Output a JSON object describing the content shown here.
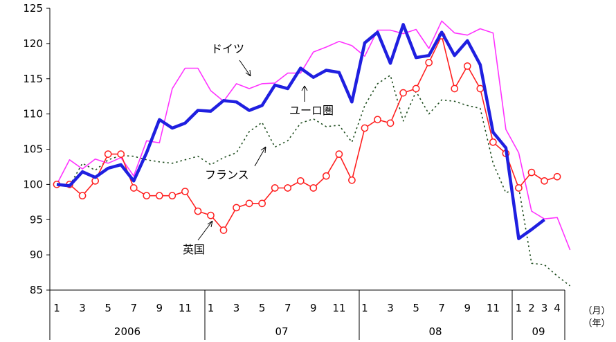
{
  "chart_data": {
    "type": "line",
    "ylim": [
      85,
      125
    ],
    "yticks": [
      85,
      90,
      95,
      100,
      105,
      110,
      115,
      120,
      125
    ],
    "x_month_labels": [
      "1",
      "3",
      "5",
      "7",
      "9",
      "11",
      "1",
      "3",
      "5",
      "7",
      "9",
      "11",
      "1",
      "3",
      "5",
      "7",
      "9",
      "11",
      "1",
      "2",
      "3",
      "4"
    ],
    "x_year_labels": [
      "2006",
      "07",
      "08",
      "09"
    ],
    "x_unit_month": "（月）",
    "x_unit_year": "（年）",
    "colors": {
      "ドイツ": "#ff33ff",
      "ユーロ圏": "#1f1fe0",
      "フランス": "#1f4d1f",
      "英国": "#ff2020"
    },
    "series": [
      {
        "name": "ドイツ",
        "values": [
          100,
          103.5,
          102.2,
          103.6,
          103.0,
          103.8,
          101.2,
          106.2,
          105.9,
          113.6,
          116.5,
          116.5,
          113.3,
          111.8,
          114.3,
          113.6,
          114.3,
          114.4,
          115.8,
          115.8,
          118.8,
          119.5,
          120.3,
          119.7,
          118.2,
          121.9,
          121.9,
          121.4,
          122.0,
          119.3,
          123.2,
          121.5,
          121.2,
          122.1,
          121.5,
          107.8,
          104.5,
          96.2,
          95.1,
          95.3,
          90.7
        ]
      },
      {
        "name": "ユーロ圏",
        "values": [
          100,
          99.8,
          101.8,
          101.0,
          102.3,
          102.8,
          100.5,
          104.5,
          109.2,
          108.0,
          108.7,
          110.5,
          110.4,
          111.9,
          111.7,
          110.5,
          111.2,
          114.1,
          113.6,
          116.5,
          115.2,
          116.2,
          115.9,
          111.7,
          120.1,
          121.6,
          117.2,
          122.7,
          118.0,
          118.3,
          121.6,
          118.3,
          120.4,
          117.0,
          107.4,
          105.2,
          92.3,
          93.6,
          95.0
        ]
      },
      {
        "name": "フランス",
        "values": [
          100,
          99.8,
          103.0,
          102.0,
          103.5,
          104.1,
          104.0,
          103.5,
          103.2,
          103.0,
          103.5,
          104.0,
          102.8,
          103.8,
          104.5,
          107.5,
          108.8,
          105.3,
          106.2,
          108.7,
          109.3,
          108.2,
          108.4,
          106.0,
          111.2,
          114.3,
          115.5,
          109.0,
          113.2,
          110.0,
          112.0,
          111.8,
          111.2,
          110.8,
          103.0,
          98.8,
          99.6,
          88.8,
          88.6,
          87.0,
          85.6
        ]
      },
      {
        "name": "英国",
        "values": [
          100,
          100,
          98.4,
          100.5,
          104.3,
          104.3,
          99.5,
          98.4,
          98.4,
          98.4,
          99.0,
          96.2,
          95.6,
          93.5,
          96.7,
          97.3,
          97.3,
          99.5,
          99.5,
          100.5,
          99.5,
          101.2,
          104.3,
          100.6,
          108.0,
          109.2,
          108.7,
          113.0,
          113.6,
          117.3,
          121.1,
          113.6,
          116.8,
          113.6,
          106.0,
          104.4,
          99.5,
          101.7,
          100.5,
          101.1
        ]
      }
    ],
    "annotations": [
      {
        "text": "ドイツ"
      },
      {
        "text": "ユーロ圏"
      },
      {
        "text": "フランス"
      },
      {
        "text": "英国"
      }
    ]
  }
}
